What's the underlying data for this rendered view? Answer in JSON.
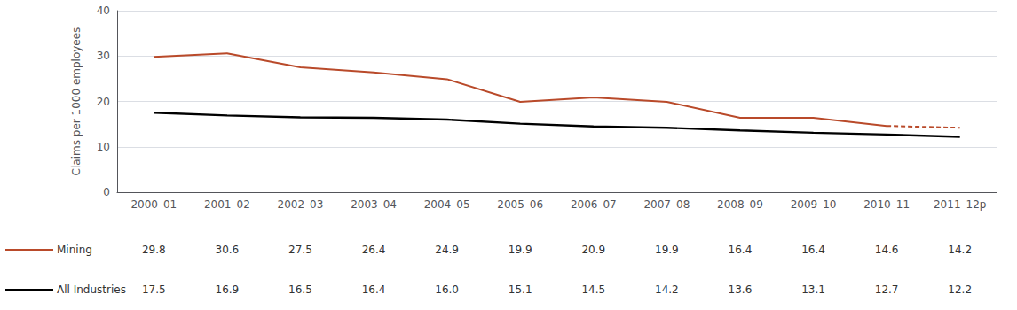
{
  "chart_data": {
    "type": "line",
    "categories": [
      "2000–01",
      "2001–02",
      "2002–03",
      "2003–04",
      "2004–05",
      "2005–06",
      "2006–07",
      "2007–08",
      "2008–09",
      "2009–10",
      "2010–11",
      "2011–12p"
    ],
    "ylabel": "Claims per 1000 employees",
    "ylim": [
      0,
      40
    ],
    "yticks": [
      0,
      10,
      20,
      30,
      40
    ],
    "grid": true,
    "series": [
      {
        "name": "Mining",
        "color": "#b94a2a",
        "line_style": "solid",
        "dashed_from": "2010–11",
        "values": [
          29.8,
          30.6,
          27.5,
          26.4,
          24.9,
          19.9,
          20.9,
          19.9,
          16.4,
          16.4,
          14.6,
          14.2
        ],
        "value_labels": [
          "29.8",
          "30.6",
          "27.5",
          "26.4",
          "24.9",
          "19.9",
          "20.9",
          "19.9",
          "16.4",
          "16.4",
          "14.6",
          "14.2"
        ]
      },
      {
        "name": "All Industries",
        "color": "#000000",
        "line_style": "solid",
        "values": [
          17.5,
          16.9,
          16.5,
          16.4,
          16.0,
          15.1,
          14.5,
          14.2,
          13.6,
          13.1,
          12.7,
          12.2
        ],
        "value_labels": [
          "17.5",
          "16.9",
          "16.5",
          "16.4",
          "16.0",
          "15.1",
          "14.5",
          "14.2",
          "13.6",
          "13.1",
          "12.7",
          "12.2"
        ]
      }
    ]
  }
}
